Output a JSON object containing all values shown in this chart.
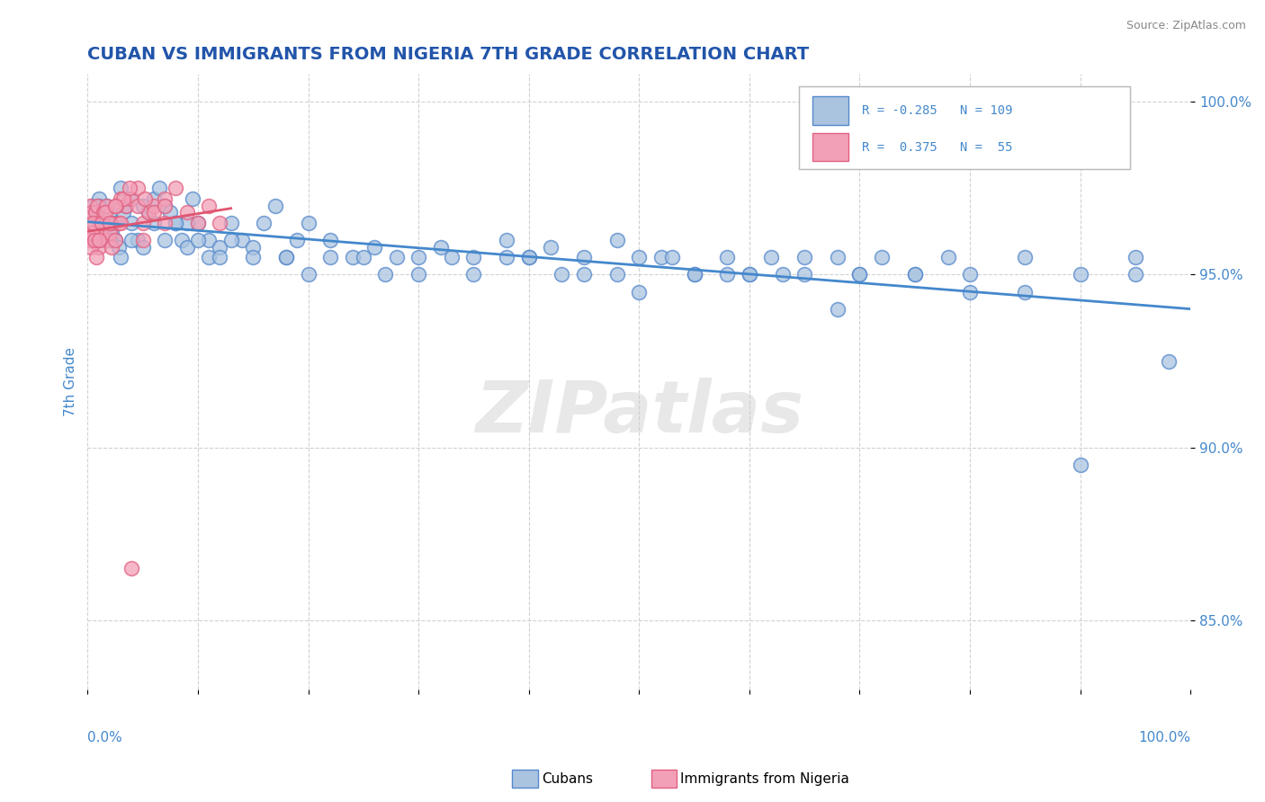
{
  "title": "CUBAN VS IMMIGRANTS FROM NIGERIA 7TH GRADE CORRELATION CHART",
  "source": "Source: ZipAtlas.com",
  "ylabel": "7th Grade",
  "blue_color": "#aac4e0",
  "pink_color": "#f2a0b8",
  "blue_edge_color": "#5588cc",
  "pink_edge_color": "#e06080",
  "blue_line_color": "#4488cc",
  "pink_line_color": "#e05570",
  "title_color": "#2255aa",
  "axis_label_color": "#4488cc",
  "watermark": "ZIPatlas",
  "cubans_x": [
    0.5,
    0.8,
    1.0,
    1.2,
    1.5,
    1.8,
    2.0,
    2.2,
    2.5,
    2.8,
    3.0,
    3.2,
    3.5,
    3.8,
    4.0,
    4.5,
    5.0,
    5.5,
    6.0,
    6.5,
    7.0,
    7.5,
    8.0,
    8.5,
    9.0,
    9.5,
    10.0,
    11.0,
    12.0,
    13.0,
    14.0,
    15.0,
    16.0,
    17.0,
    18.0,
    19.0,
    20.0,
    22.0,
    24.0,
    26.0,
    28.0,
    30.0,
    32.0,
    35.0,
    38.0,
    40.0,
    42.0,
    45.0,
    48.0,
    50.0,
    52.0,
    55.0,
    58.0,
    60.0,
    62.0,
    65.0,
    68.0,
    70.0,
    72.0,
    75.0,
    78.0,
    80.0,
    85.0,
    90.0,
    95.0,
    98.0,
    2.0,
    3.0,
    5.0,
    7.0,
    9.0,
    11.0,
    13.0,
    15.0,
    20.0,
    25.0,
    30.0,
    35.0,
    40.0,
    45.0,
    50.0,
    55.0,
    60.0,
    65.0,
    70.0,
    75.0,
    80.0,
    85.0,
    90.0,
    95.0,
    1.0,
    2.5,
    4.0,
    6.0,
    8.0,
    10.0,
    12.0,
    18.0,
    22.0,
    27.0,
    33.0,
    38.0,
    43.0,
    48.0,
    53.0,
    58.0,
    63.0,
    68.0
  ],
  "cubans_y": [
    97.0,
    96.8,
    97.2,
    96.0,
    96.5,
    97.0,
    96.8,
    96.2,
    96.0,
    95.8,
    97.5,
    96.8,
    97.0,
    97.2,
    96.5,
    96.0,
    97.0,
    96.8,
    97.2,
    97.5,
    97.0,
    96.8,
    96.5,
    96.0,
    95.8,
    97.2,
    96.5,
    96.0,
    95.8,
    96.5,
    96.0,
    95.8,
    96.5,
    97.0,
    95.5,
    96.0,
    96.5,
    96.0,
    95.5,
    95.8,
    95.5,
    95.0,
    95.8,
    95.5,
    96.0,
    95.5,
    95.8,
    95.5,
    96.0,
    94.5,
    95.5,
    95.0,
    95.5,
    95.0,
    95.5,
    95.0,
    95.5,
    95.0,
    95.5,
    95.0,
    95.5,
    95.0,
    95.5,
    95.0,
    95.5,
    92.5,
    96.0,
    95.5,
    95.8,
    96.0,
    96.5,
    95.5,
    96.0,
    95.5,
    95.0,
    95.5,
    95.5,
    95.0,
    95.5,
    95.0,
    95.5,
    95.0,
    95.0,
    95.5,
    95.0,
    95.0,
    94.5,
    94.5,
    89.5,
    95.0,
    97.0,
    96.5,
    96.0,
    96.5,
    96.5,
    96.0,
    95.5,
    95.5,
    95.5,
    95.0,
    95.5,
    95.5,
    95.0,
    95.0,
    95.5,
    95.0,
    95.0,
    94.0
  ],
  "nigeria_x": [
    0.2,
    0.4,
    0.6,
    0.8,
    1.0,
    1.2,
    1.5,
    1.8,
    2.0,
    2.2,
    2.5,
    2.8,
    3.0,
    3.5,
    4.0,
    4.5,
    5.0,
    5.5,
    6.0,
    7.0,
    8.0,
    9.0,
    10.0,
    11.0,
    12.0,
    0.3,
    0.5,
    0.7,
    0.9,
    1.1,
    1.4,
    1.7,
    2.1,
    2.6,
    3.2,
    3.8,
    4.5,
    5.2,
    6.0,
    7.0,
    0.2,
    0.3,
    0.4,
    0.5,
    0.6,
    0.8,
    1.0,
    1.3,
    1.6,
    2.0,
    2.5,
    3.0,
    4.0,
    5.0,
    7.0
  ],
  "nigeria_y": [
    97.0,
    96.8,
    96.5,
    96.0,
    95.8,
    96.2,
    96.5,
    96.0,
    96.2,
    95.8,
    96.0,
    96.5,
    97.2,
    97.0,
    97.2,
    97.5,
    96.5,
    96.8,
    97.0,
    97.2,
    97.5,
    96.8,
    96.5,
    97.0,
    96.5,
    96.0,
    96.2,
    96.8,
    97.0,
    96.5,
    96.8,
    97.0,
    96.5,
    97.0,
    97.2,
    97.5,
    97.0,
    97.2,
    96.8,
    97.0,
    96.0,
    95.8,
    96.2,
    96.5,
    96.0,
    95.5,
    96.0,
    96.5,
    96.8,
    96.5,
    97.0,
    96.5,
    86.5,
    96.0,
    96.5
  ],
  "xlim": [
    0,
    100
  ],
  "ylim": [
    83.0,
    100.8
  ],
  "yticks": [
    85.0,
    90.0,
    95.0,
    100.0
  ],
  "ytick_labels": [
    "85.0%",
    "90.0%",
    "95.0%",
    "100.0%"
  ],
  "grid_color": "#cccccc",
  "background_color": "#ffffff",
  "blue_trend_x": [
    0,
    100
  ],
  "pink_trend_x_max": 13.0
}
